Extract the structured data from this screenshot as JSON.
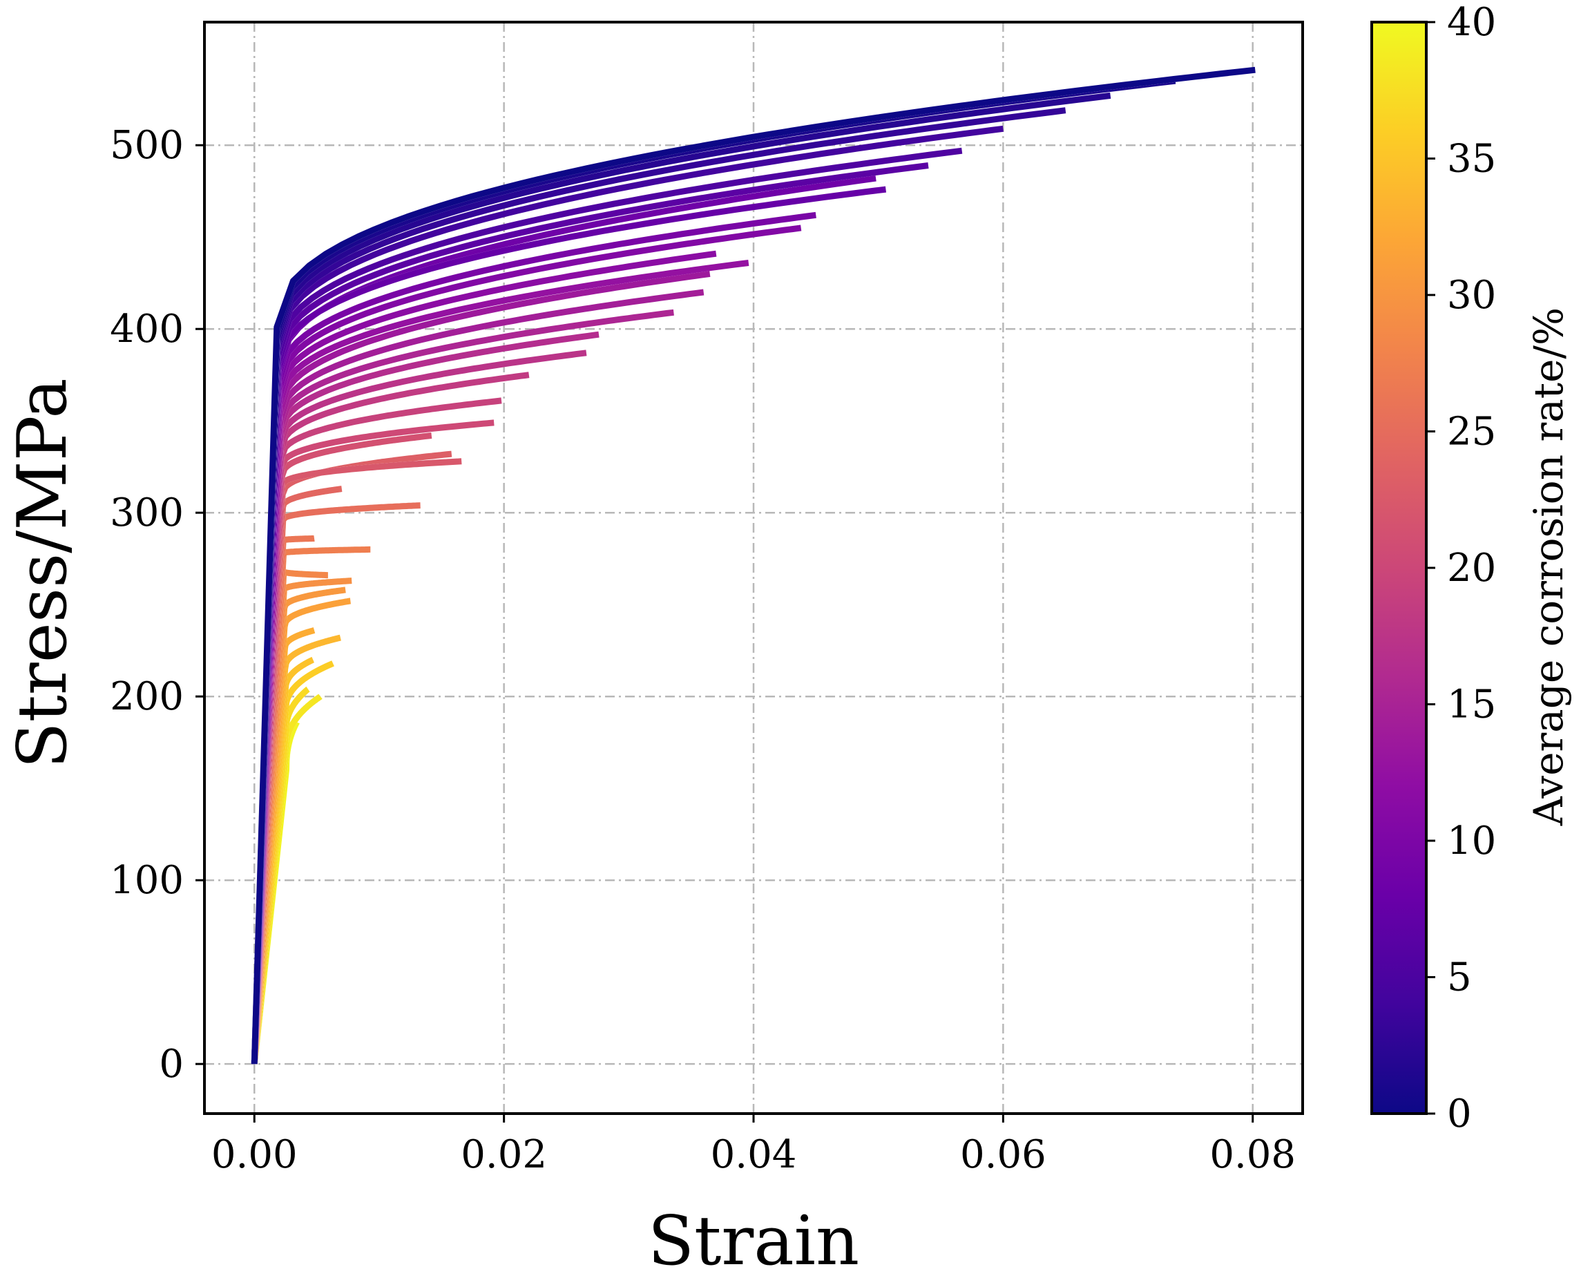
{
  "chart_data": {
    "type": "line",
    "title": "",
    "xlabel": "Strain",
    "ylabel": "Stress/MPa",
    "xlim": [
      -0.004,
      0.084
    ],
    "ylim": [
      -27,
      567
    ],
    "xticks": [
      0.0,
      0.02,
      0.04,
      0.06,
      0.08
    ],
    "xtick_labels": [
      "0.00",
      "0.02",
      "0.04",
      "0.06",
      "0.08"
    ],
    "yticks": [
      0,
      100,
      200,
      300,
      400,
      500
    ],
    "ytick_labels": [
      "0",
      "100",
      "200",
      "300",
      "400",
      "500"
    ],
    "grid": true,
    "colorbar": {
      "label": "Average corrosion rate/%",
      "range": [
        0,
        40
      ],
      "ticks": [
        0,
        5,
        10,
        15,
        20,
        25,
        30,
        35,
        40
      ],
      "tick_labels": [
        "0",
        "5",
        "10",
        "15",
        "20",
        "25",
        "30",
        "35",
        "40"
      ],
      "colormap": "plasma"
    },
    "curve_model": "bilinear elastic, then power-law hardening from yield point to ultimate point",
    "series": [
      {
        "corrosion": 0.0,
        "yield_strain": 0.0018,
        "yield_stress": 401,
        "ultimate_strain": 0.0802,
        "ultimate_stress": 541
      },
      {
        "corrosion": 1.0,
        "yield_strain": 0.00182,
        "yield_stress": 398,
        "ultimate_strain": 0.0738,
        "ultimate_stress": 535
      },
      {
        "corrosion": 2.0,
        "yield_strain": 0.00184,
        "yield_stress": 395,
        "ultimate_strain": 0.0686,
        "ultimate_stress": 527
      },
      {
        "corrosion": 3.0,
        "yield_strain": 0.00186,
        "yield_stress": 392,
        "ultimate_strain": 0.065,
        "ultimate_stress": 519
      },
      {
        "corrosion": 4.2,
        "yield_strain": 0.00188,
        "yield_stress": 389,
        "ultimate_strain": 0.06,
        "ultimate_stress": 509
      },
      {
        "corrosion": 5.4,
        "yield_strain": 0.0019,
        "yield_stress": 385,
        "ultimate_strain": 0.0567,
        "ultimate_stress": 497
      },
      {
        "corrosion": 6.5,
        "yield_strain": 0.00192,
        "yield_stress": 381,
        "ultimate_strain": 0.054,
        "ultimate_stress": 489
      },
      {
        "corrosion": 7.6,
        "yield_strain": 0.00194,
        "yield_stress": 378,
        "ultimate_strain": 0.0506,
        "ultimate_stress": 476
      },
      {
        "corrosion": 8.5,
        "yield_strain": 0.00196,
        "yield_stress": 375,
        "ultimate_strain": 0.0498,
        "ultimate_stress": 482
      },
      {
        "corrosion": 9.6,
        "yield_strain": 0.00198,
        "yield_stress": 371,
        "ultimate_strain": 0.045,
        "ultimate_stress": 462
      },
      {
        "corrosion": 10.6,
        "yield_strain": 0.002,
        "yield_stress": 367,
        "ultimate_strain": 0.0438,
        "ultimate_stress": 455
      },
      {
        "corrosion": 11.6,
        "yield_strain": 0.00202,
        "yield_stress": 363,
        "ultimate_strain": 0.037,
        "ultimate_stress": 441
      },
      {
        "corrosion": 12.6,
        "yield_strain": 0.00204,
        "yield_stress": 359,
        "ultimate_strain": 0.0396,
        "ultimate_stress": 436
      },
      {
        "corrosion": 13.6,
        "yield_strain": 0.00206,
        "yield_stress": 354,
        "ultimate_strain": 0.0365,
        "ultimate_stress": 430
      },
      {
        "corrosion": 14.4,
        "yield_strain": 0.00208,
        "yield_stress": 350,
        "ultimate_strain": 0.036,
        "ultimate_stress": 420
      },
      {
        "corrosion": 15.4,
        "yield_strain": 0.0021,
        "yield_stress": 346,
        "ultimate_strain": 0.0336,
        "ultimate_stress": 409
      },
      {
        "corrosion": 16.4,
        "yield_strain": 0.00212,
        "yield_stress": 342,
        "ultimate_strain": 0.0276,
        "ultimate_stress": 397
      },
      {
        "corrosion": 17.4,
        "yield_strain": 0.00214,
        "yield_stress": 338,
        "ultimate_strain": 0.0266,
        "ultimate_stress": 387
      },
      {
        "corrosion": 18.3,
        "yield_strain": 0.00216,
        "yield_stress": 334,
        "ultimate_strain": 0.022,
        "ultimate_stress": 375
      },
      {
        "corrosion": 19.3,
        "yield_strain": 0.00218,
        "yield_stress": 330,
        "ultimate_strain": 0.0198,
        "ultimate_stress": 361
      },
      {
        "corrosion": 20.3,
        "yield_strain": 0.0022,
        "yield_stress": 325,
        "ultimate_strain": 0.0192,
        "ultimate_stress": 349
      },
      {
        "corrosion": 21.3,
        "yield_strain": 0.00222,
        "yield_stress": 320,
        "ultimate_strain": 0.0142,
        "ultimate_stress": 342
      },
      {
        "corrosion": 22.3,
        "yield_strain": 0.00224,
        "yield_stress": 315,
        "ultimate_strain": 0.0166,
        "ultimate_stress": 328
      },
      {
        "corrosion": 23.3,
        "yield_strain": 0.00226,
        "yield_stress": 310,
        "ultimate_strain": 0.0158,
        "ultimate_stress": 332
      },
      {
        "corrosion": 24.3,
        "yield_strain": 0.00228,
        "yield_stress": 303,
        "ultimate_strain": 0.007,
        "ultimate_stress": 313
      },
      {
        "corrosion": 25.3,
        "yield_strain": 0.0023,
        "yield_stress": 296,
        "ultimate_strain": 0.0133,
        "ultimate_stress": 304
      },
      {
        "corrosion": 26.3,
        "yield_strain": 0.00232,
        "yield_stress": 285,
        "ultimate_strain": 0.0048,
        "ultimate_stress": 286
      },
      {
        "corrosion": 27.3,
        "yield_strain": 0.00234,
        "yield_stress": 278,
        "ultimate_strain": 0.0093,
        "ultimate_stress": 280
      },
      {
        "corrosion": 28.4,
        "yield_strain": 0.00236,
        "yield_stress": 268,
        "ultimate_strain": 0.0059,
        "ultimate_stress": 266
      },
      {
        "corrosion": 29.4,
        "yield_strain": 0.00238,
        "yield_stress": 258,
        "ultimate_strain": 0.0078,
        "ultimate_stress": 263
      },
      {
        "corrosion": 30.4,
        "yield_strain": 0.0024,
        "yield_stress": 248,
        "ultimate_strain": 0.0073,
        "ultimate_stress": 258
      },
      {
        "corrosion": 31.4,
        "yield_strain": 0.00242,
        "yield_stress": 238,
        "ultimate_strain": 0.0077,
        "ultimate_stress": 252
      },
      {
        "corrosion": 32.6,
        "yield_strain": 0.00244,
        "yield_stress": 226,
        "ultimate_strain": 0.0048,
        "ultimate_stress": 236
      },
      {
        "corrosion": 33.7,
        "yield_strain": 0.00246,
        "yield_stress": 215,
        "ultimate_strain": 0.0069,
        "ultimate_stress": 232
      },
      {
        "corrosion": 34.8,
        "yield_strain": 0.00248,
        "yield_stress": 203,
        "ultimate_strain": 0.0047,
        "ultimate_stress": 220
      },
      {
        "corrosion": 35.9,
        "yield_strain": 0.0025,
        "yield_stress": 192,
        "ultimate_strain": 0.0063,
        "ultimate_stress": 218
      },
      {
        "corrosion": 37.0,
        "yield_strain": 0.00252,
        "yield_stress": 180,
        "ultimate_strain": 0.0043,
        "ultimate_stress": 204
      },
      {
        "corrosion": 38.2,
        "yield_strain": 0.00254,
        "yield_stress": 170,
        "ultimate_strain": 0.0053,
        "ultimate_stress": 200
      },
      {
        "corrosion": 39.5,
        "yield_strain": 0.00256,
        "yield_stress": 160,
        "ultimate_strain": 0.0034,
        "ultimate_stress": 186
      }
    ]
  }
}
